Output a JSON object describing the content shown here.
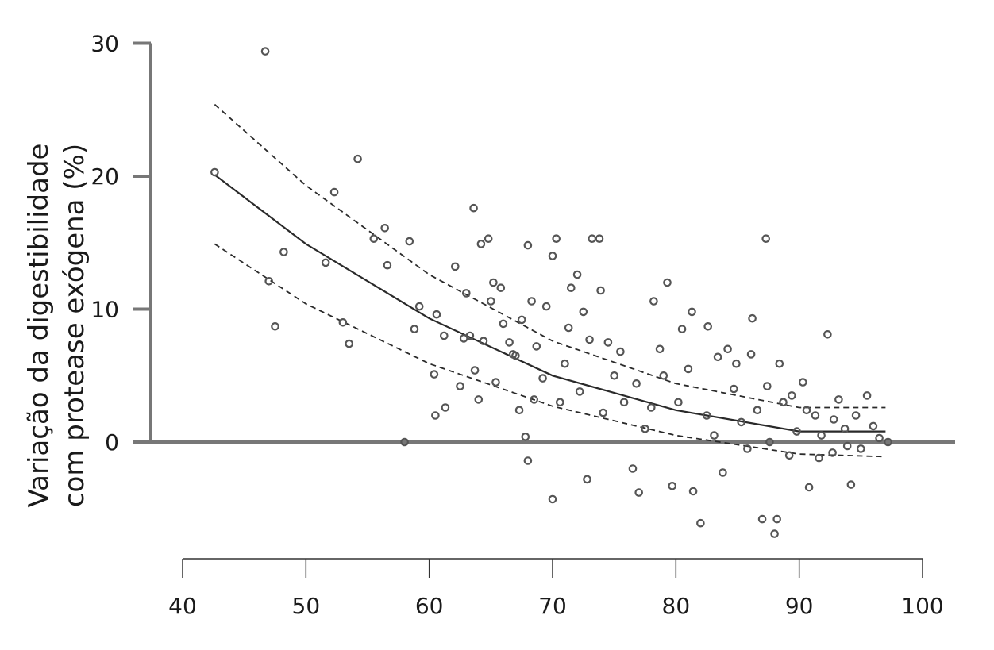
{
  "chart_data": {
    "type": "scatter",
    "title": "",
    "xlabel": "",
    "ylabel_lines": [
      "Variação da digestibilidade",
      "com protease exógena (%)"
    ],
    "xlim": [
      40,
      100
    ],
    "ylim": [
      -7,
      30
    ],
    "x_ticks": [
      40,
      50,
      60,
      70,
      80,
      90,
      100
    ],
    "y_ticks": [
      0,
      10,
      20,
      30
    ],
    "grid": false,
    "legend": "none",
    "point_color": "#555555",
    "line_color": "#2a2a2a",
    "axis_color": "#777777",
    "series": [
      {
        "marker": "open-circle",
        "points": [
          [
            42.6,
            20.3
          ],
          [
            46.7,
            29.4
          ],
          [
            47.0,
            12.1
          ],
          [
            47.5,
            8.7
          ],
          [
            48.2,
            14.3
          ],
          [
            51.6,
            13.5
          ],
          [
            52.3,
            18.8
          ],
          [
            53.0,
            9.0
          ],
          [
            53.5,
            7.4
          ],
          [
            54.2,
            21.3
          ],
          [
            55.5,
            15.3
          ],
          [
            56.4,
            16.1
          ],
          [
            56.6,
            13.3
          ],
          [
            58.0,
            0.0
          ],
          [
            58.4,
            15.1
          ],
          [
            58.8,
            8.5
          ],
          [
            59.2,
            10.2
          ],
          [
            60.4,
            5.1
          ],
          [
            60.5,
            2.0
          ],
          [
            60.6,
            9.6
          ],
          [
            61.2,
            8.0
          ],
          [
            61.3,
            2.6
          ],
          [
            62.1,
            13.2
          ],
          [
            62.5,
            4.2
          ],
          [
            63.0,
            11.2
          ],
          [
            63.3,
            8.0
          ],
          [
            63.6,
            17.6
          ],
          [
            63.7,
            5.4
          ],
          [
            64.0,
            3.2
          ],
          [
            64.2,
            14.9
          ],
          [
            64.8,
            15.3
          ],
          [
            65.2,
            12.0
          ],
          [
            65.8,
            11.6
          ],
          [
            66.0,
            8.9
          ],
          [
            66.5,
            7.5
          ],
          [
            67.0,
            6.5
          ],
          [
            67.3,
            2.4
          ],
          [
            67.8,
            0.4
          ],
          [
            68.0,
            -1.4
          ],
          [
            68.0,
            14.8
          ],
          [
            68.3,
            10.6
          ],
          [
            68.7,
            7.2
          ],
          [
            69.5,
            10.2
          ],
          [
            70.0,
            -4.3
          ],
          [
            70.0,
            14.0
          ],
          [
            70.3,
            15.3
          ],
          [
            71.0,
            5.9
          ],
          [
            71.5,
            11.6
          ],
          [
            72.0,
            12.6
          ],
          [
            72.5,
            9.8
          ],
          [
            72.8,
            -2.8
          ],
          [
            73.2,
            15.3
          ],
          [
            73.8,
            15.3
          ],
          [
            73.9,
            11.4
          ],
          [
            74.5,
            7.5
          ],
          [
            75.0,
            5.0
          ],
          [
            75.8,
            3.0
          ],
          [
            76.5,
            -2.0
          ],
          [
            77.0,
            -3.8
          ],
          [
            77.5,
            1.0
          ],
          [
            78.2,
            10.6
          ],
          [
            78.7,
            7.0
          ],
          [
            79.3,
            12.0
          ],
          [
            79.7,
            -3.3
          ],
          [
            80.2,
            3.0
          ],
          [
            81.0,
            5.5
          ],
          [
            81.4,
            -3.7
          ],
          [
            82.0,
            -6.1
          ],
          [
            82.5,
            2.0
          ],
          [
            83.1,
            0.5
          ],
          [
            83.8,
            -2.3
          ],
          [
            84.2,
            7.0
          ],
          [
            84.7,
            4.0
          ],
          [
            85.3,
            1.5
          ],
          [
            85.8,
            -0.5
          ],
          [
            86.2,
            9.3
          ],
          [
            86.6,
            2.4
          ],
          [
            87.0,
            -5.8
          ],
          [
            87.3,
            15.3
          ],
          [
            87.6,
            0.0
          ],
          [
            88.0,
            -6.9
          ],
          [
            88.2,
            -5.8
          ],
          [
            88.7,
            3.0
          ],
          [
            89.2,
            -1.0
          ],
          [
            89.8,
            0.8
          ],
          [
            90.3,
            4.5
          ],
          [
            90.8,
            -3.4
          ],
          [
            91.3,
            2.0
          ],
          [
            91.8,
            0.5
          ],
          [
            92.3,
            8.1
          ],
          [
            92.7,
            -0.8
          ],
          [
            93.2,
            3.2
          ],
          [
            93.7,
            1.0
          ],
          [
            94.2,
            -3.2
          ],
          [
            94.6,
            2.0
          ],
          [
            95.0,
            -0.5
          ],
          [
            95.5,
            3.5
          ],
          [
            96.0,
            1.2
          ],
          [
            96.5,
            0.3
          ],
          [
            97.2,
            0.0
          ],
          [
            80.5,
            8.5
          ],
          [
            81.3,
            9.8
          ],
          [
            82.6,
            8.7
          ],
          [
            83.4,
            6.4
          ],
          [
            84.9,
            5.9
          ],
          [
            86.1,
            6.6
          ],
          [
            87.4,
            4.2
          ],
          [
            88.4,
            5.9
          ],
          [
            89.4,
            3.5
          ],
          [
            90.6,
            2.4
          ],
          [
            91.6,
            -1.2
          ],
          [
            92.8,
            1.7
          ],
          [
            93.9,
            -0.3
          ],
          [
            79.0,
            5.0
          ],
          [
            78.0,
            2.6
          ],
          [
            76.8,
            4.4
          ],
          [
            75.5,
            6.8
          ],
          [
            74.1,
            2.2
          ],
          [
            73.0,
            7.7
          ],
          [
            72.2,
            3.8
          ],
          [
            71.3,
            8.6
          ],
          [
            70.6,
            3.0
          ],
          [
            69.2,
            4.8
          ],
          [
            68.5,
            3.2
          ],
          [
            67.5,
            9.2
          ],
          [
            66.8,
            6.6
          ],
          [
            65.4,
            4.5
          ],
          [
            65.0,
            10.6
          ],
          [
            64.4,
            7.6
          ],
          [
            62.8,
            7.8
          ]
        ]
      }
    ],
    "fit_lines": [
      {
        "role": "central-fit",
        "style": "solid",
        "points": [
          [
            42.6,
            20.1
          ],
          [
            50,
            14.9
          ],
          [
            60,
            9.3
          ],
          [
            70,
            5.0
          ],
          [
            80,
            2.4
          ],
          [
            90,
            0.8
          ],
          [
            97,
            0.8
          ]
        ]
      },
      {
        "role": "upper-band",
        "style": "dashed",
        "points": [
          [
            42.6,
            25.4
          ],
          [
            50,
            19.3
          ],
          [
            60,
            12.6
          ],
          [
            70,
            7.6
          ],
          [
            80,
            4.4
          ],
          [
            90,
            2.6
          ],
          [
            97,
            2.6
          ]
        ]
      },
      {
        "role": "lower-band",
        "style": "dashed",
        "points": [
          [
            42.6,
            14.9
          ],
          [
            50,
            10.4
          ],
          [
            60,
            5.9
          ],
          [
            70,
            2.7
          ],
          [
            80,
            0.5
          ],
          [
            90,
            -0.9
          ],
          [
            97,
            -1.1
          ]
        ]
      }
    ]
  }
}
